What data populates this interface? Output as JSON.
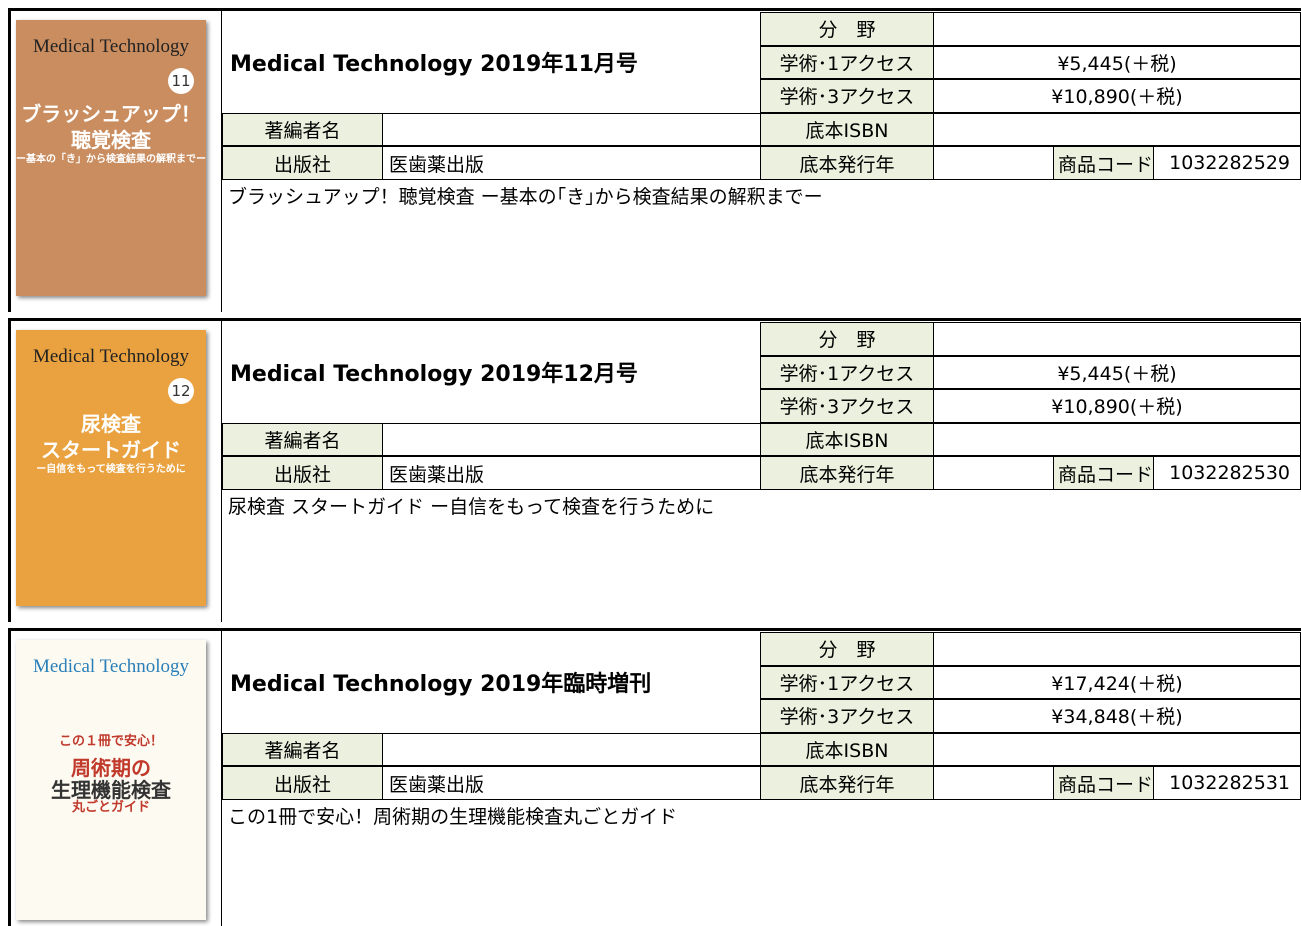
{
  "products": [
    {
      "cover": {
        "brand": "Medical Technology",
        "number": "11",
        "lines": [
          "ブラッシュアップ！",
          "聴覚検査",
          "ー基本の「き」から検査結果の解釈までー"
        ]
      },
      "title": "Medical Technology 2019年11月号",
      "field_label": "分　野",
      "access1_label": "学術･1アクセス",
      "access1_price": "¥5,445(＋税)",
      "access3_label": "学術･3アクセス",
      "access3_price": "¥10,890(＋税)",
      "author_label": "著編者名",
      "isbn_label": "底本ISBN",
      "publisher_label": "出版社",
      "publisher": "医歯薬出版",
      "year_label": "底本発行年",
      "code_label": "商品コード",
      "code": "1032282529",
      "description": "ブラッシュアップ！聴覚検査 ー基本の｢き｣から検査結果の解釈までー"
    },
    {
      "cover": {
        "brand": "Medical Technology",
        "number": "12",
        "lines": [
          "尿検査",
          "スタートガイド",
          "ー自信をもって検査を行うために"
        ]
      },
      "title": "Medical Technology 2019年12月号",
      "field_label": "分　野",
      "access1_label": "学術･1アクセス",
      "access1_price": "¥5,445(＋税)",
      "access3_label": "学術･3アクセス",
      "access3_price": "¥10,890(＋税)",
      "author_label": "著編者名",
      "isbn_label": "底本ISBN",
      "publisher_label": "出版社",
      "publisher": "医歯薬出版",
      "year_label": "底本発行年",
      "code_label": "商品コード",
      "code": "1032282530",
      "description": "尿検査 スタートガイド ー自信をもって検査を行うために"
    },
    {
      "cover": {
        "brand": "Medical Technology",
        "lines": [
          "この１冊で安心！",
          "周術期の",
          "生理機能検査",
          "丸ごとガイド"
        ]
      },
      "title": "Medical Technology 2019年臨時増刊",
      "field_label": "分　野",
      "access1_label": "学術･1アクセス",
      "access1_price": "¥17,424(＋税)",
      "access3_label": "学術･3アクセス",
      "access3_price": "¥34,848(＋税)",
      "author_label": "著編者名",
      "isbn_label": "底本ISBN",
      "publisher_label": "出版社",
      "publisher": "医歯薬出版",
      "year_label": "底本発行年",
      "code_label": "商品コード",
      "code": "1032282531",
      "description": "この1冊で安心！周術期の生理機能検査丸ごとガイド"
    }
  ]
}
